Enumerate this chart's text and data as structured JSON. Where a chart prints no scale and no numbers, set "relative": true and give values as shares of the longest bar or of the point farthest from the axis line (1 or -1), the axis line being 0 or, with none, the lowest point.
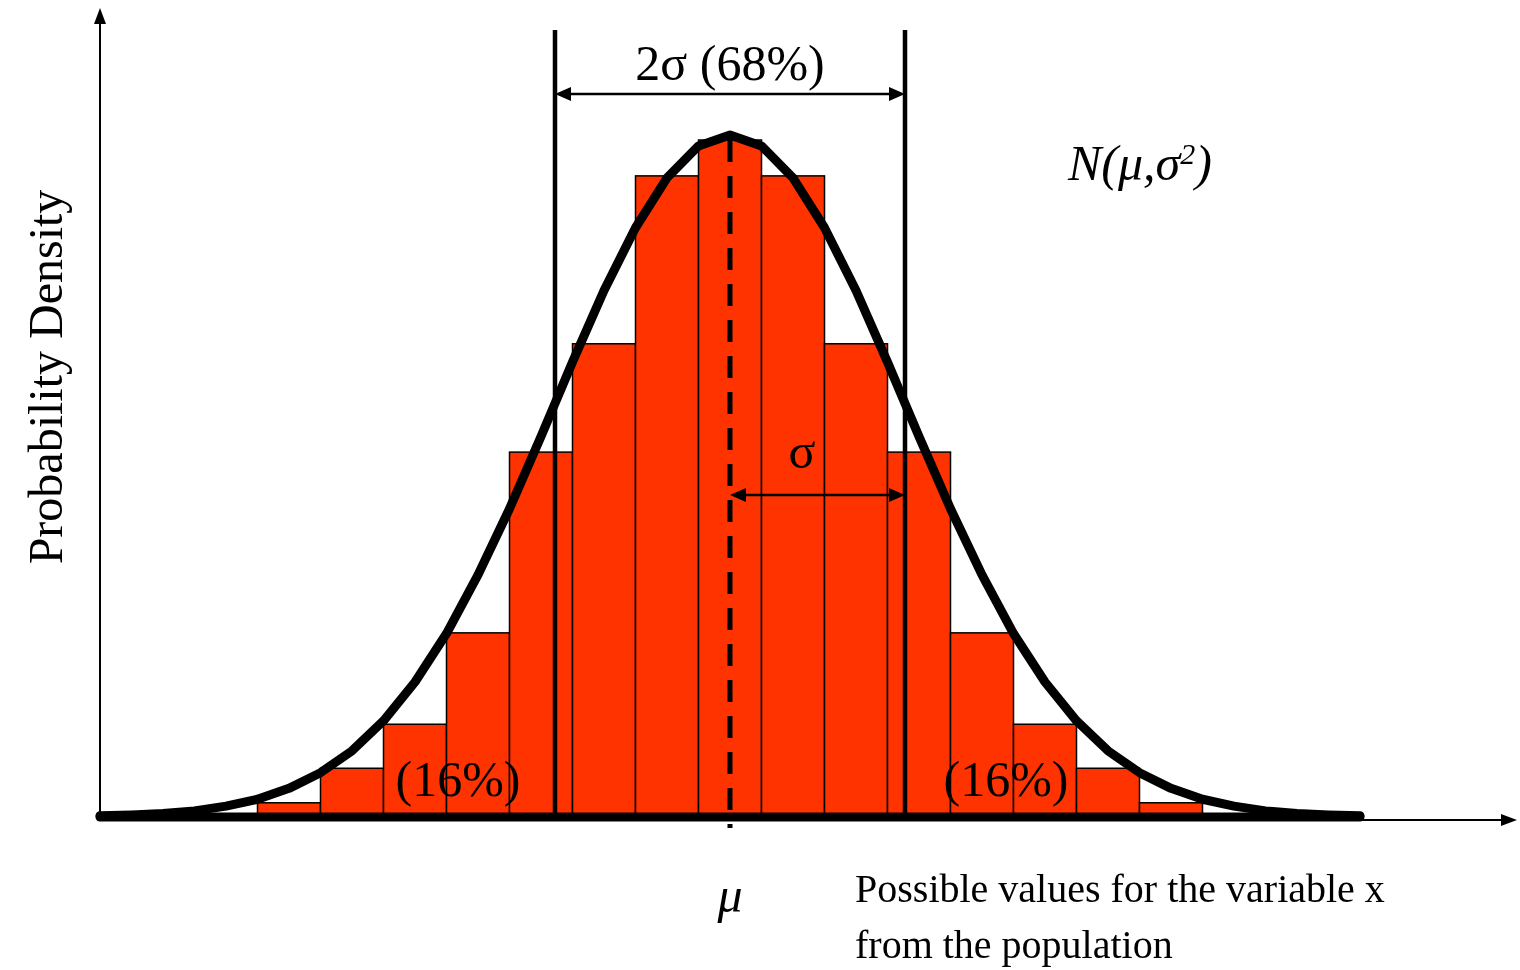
{
  "chart_data": [
    {
      "type": "bar",
      "relative": true,
      "xlabel": "Possible values for the variable x from the population",
      "ylabel": "Probability Density",
      "categories": [
        null,
        null,
        null,
        null,
        null,
        null,
        null,
        null,
        null,
        null,
        null,
        null,
        null,
        null,
        null
      ],
      "color": "#ff3300",
      "values": [
        0.021,
        0.072,
        0.137,
        0.272,
        0.539,
        0.699,
        0.947,
        1,
        0.947,
        0.699,
        0.539,
        0.272,
        0.137,
        0.072,
        0.021
      ],
      "annotations": [
        "2σ (68%)",
        "σ",
        "(16%)",
        "(16%)",
        "N(μ,σ$^{2}$)",
        "μ"
      ]
    },
    {
      "type": "line",
      "relative": true,
      "categories": [
        null,
        null,
        null,
        null,
        null,
        null,
        null,
        null,
        null,
        null,
        null,
        null,
        null,
        null,
        null,
        null,
        null,
        null,
        null,
        null,
        null,
        null,
        null,
        null,
        null,
        null,
        null,
        null,
        null,
        null,
        null,
        null,
        null,
        null,
        null,
        null,
        null,
        null,
        null,
        null,
        null
      ],
      "color": "#000000",
      "values": [
        0.002,
        0.003,
        0.005,
        0.009,
        0.016,
        0.026,
        0.042,
        0.065,
        0.097,
        0.141,
        0.198,
        0.269,
        0.355,
        0.452,
        0.558,
        0.667,
        0.772,
        0.864,
        0.937,
        0.984,
        1,
        0.984,
        0.937,
        0.864,
        0.772,
        0.667,
        0.558,
        0.452,
        0.355,
        0.269,
        0.198,
        0.141,
        0.097,
        0.065,
        0.042,
        0.026,
        0.016,
        0.009,
        0.005,
        0.003,
        0.002
      ]
    }
  ]
}
